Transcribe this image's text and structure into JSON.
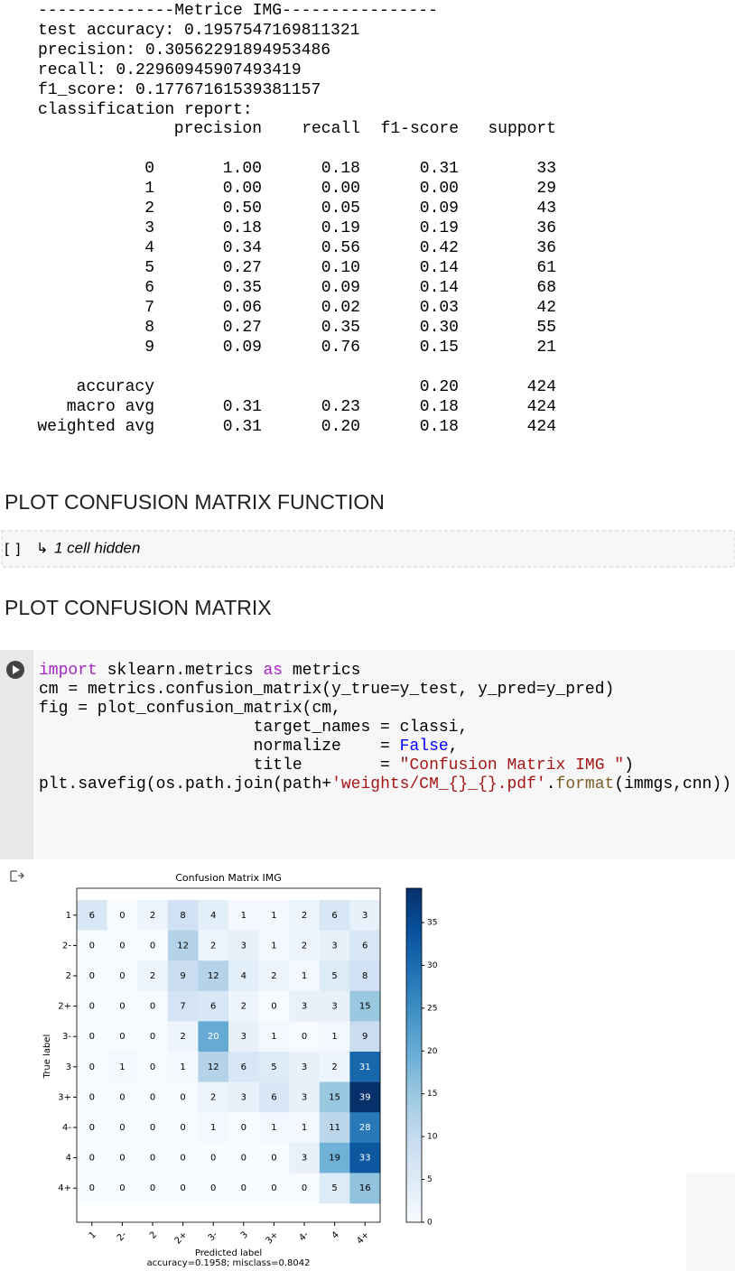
{
  "output": {
    "lines": [
      "--------------Metrice IMG----------------",
      "test accuracy: 0.1957547169811321",
      "precision: 0.30562291894953486",
      "recall: 0.22960945907493419",
      "f1_score: 0.17767161539381157",
      "classification report:"
    ],
    "report": {
      "columns": [
        "precision",
        "recall",
        "f1-score",
        "support"
      ],
      "rows": [
        {
          "label": "0",
          "values": [
            "1.00",
            "0.18",
            "0.31",
            "33"
          ]
        },
        {
          "label": "1",
          "values": [
            "0.00",
            "0.00",
            "0.00",
            "29"
          ]
        },
        {
          "label": "2",
          "values": [
            "0.50",
            "0.05",
            "0.09",
            "43"
          ]
        },
        {
          "label": "3",
          "values": [
            "0.18",
            "0.19",
            "0.19",
            "36"
          ]
        },
        {
          "label": "4",
          "values": [
            "0.34",
            "0.56",
            "0.42",
            "36"
          ]
        },
        {
          "label": "5",
          "values": [
            "0.27",
            "0.10",
            "0.14",
            "61"
          ]
        },
        {
          "label": "6",
          "values": [
            "0.35",
            "0.09",
            "0.14",
            "68"
          ]
        },
        {
          "label": "7",
          "values": [
            "0.06",
            "0.02",
            "0.03",
            "42"
          ]
        },
        {
          "label": "8",
          "values": [
            "0.27",
            "0.35",
            "0.30",
            "55"
          ]
        },
        {
          "label": "9",
          "values": [
            "0.09",
            "0.76",
            "0.15",
            "21"
          ]
        }
      ],
      "summary": [
        {
          "label": "accuracy",
          "values": [
            null,
            null,
            "0.20",
            "424"
          ]
        },
        {
          "label": "macro avg",
          "values": [
            "0.31",
            "0.23",
            "0.18",
            "424"
          ]
        },
        {
          "label": "weighted avg",
          "values": [
            "0.31",
            "0.20",
            "0.18",
            "424"
          ]
        }
      ]
    }
  },
  "headings": [
    "PLOT CONFUSION MATRIX FUNCTION",
    "PLOT CONFUSION MATRIX"
  ],
  "hidden_cell": {
    "bracket": "[ ]",
    "text": "1 cell hidden"
  },
  "code": {
    "lines": [
      [
        {
          "text": "import",
          "color": "#a626c8"
        },
        {
          "text": " sklearn.metrics ",
          "color": "#000000"
        },
        {
          "text": "as",
          "color": "#a626c8"
        },
        {
          "text": " metrics",
          "color": "#000000"
        }
      ],
      [
        {
          "text": "cm = metrics.confusion_matrix(y_true=y_test, y_pred=y_pred)",
          "color": "#000000"
        }
      ],
      [
        {
          "text": "fig = plot_confusion_matrix(cm,",
          "color": "#000000"
        }
      ],
      [
        {
          "text": "                      target_names = classi,",
          "color": "#000000"
        }
      ],
      [
        {
          "text": "                      normalize    = ",
          "color": "#000000"
        },
        {
          "text": "False",
          "color": "#0000ff"
        },
        {
          "text": ",",
          "color": "#000000"
        }
      ],
      [
        {
          "text": "                      title        = ",
          "color": "#000000"
        },
        {
          "text": "\"Confusion Matrix IMG \"",
          "color": "#a31515"
        },
        {
          "text": ")",
          "color": "#000000"
        }
      ],
      [
        {
          "text": "plt.savefig(os.path.join(path+",
          "color": "#000000"
        },
        {
          "text": "'weights/CM_{}_{}.pdf'",
          "color": "#a31515"
        },
        {
          "text": ".",
          "color": "#000000"
        },
        {
          "text": "format",
          "color": "#795e26"
        },
        {
          "text": "(immgs,cnn))",
          "color": "#000000"
        }
      ]
    ]
  },
  "confusion_matrix": {
    "title": "Confusion Matrix IMG",
    "labels": [
      "1",
      "2-",
      "2",
      "2+",
      "3-",
      "3",
      "3+",
      "4-",
      "4",
      "4+"
    ],
    "ylabel": "True label",
    "xlabel": "Predicted label",
    "footer": "accuracy=0.1958; misclass=0.8042",
    "matrix": [
      [
        6,
        0,
        2,
        8,
        4,
        1,
        1,
        2,
        6,
        3
      ],
      [
        0,
        0,
        0,
        12,
        2,
        3,
        1,
        2,
        3,
        6
      ],
      [
        0,
        0,
        2,
        9,
        12,
        4,
        2,
        1,
        5,
        8
      ],
      [
        0,
        0,
        0,
        7,
        6,
        2,
        0,
        3,
        3,
        15
      ],
      [
        0,
        0,
        0,
        2,
        20,
        3,
        1,
        0,
        1,
        9
      ],
      [
        0,
        1,
        0,
        1,
        12,
        6,
        5,
        3,
        2,
        31
      ],
      [
        0,
        0,
        0,
        0,
        2,
        3,
        6,
        3,
        15,
        39
      ],
      [
        0,
        0,
        0,
        0,
        1,
        0,
        1,
        1,
        11,
        28
      ],
      [
        0,
        0,
        0,
        0,
        0,
        0,
        0,
        3,
        19,
        33
      ],
      [
        0,
        0,
        0,
        0,
        0,
        0,
        0,
        0,
        5,
        16
      ]
    ],
    "clim": [
      0,
      39
    ],
    "cticks": [
      0,
      5,
      10,
      15,
      20,
      25,
      30,
      35
    ]
  }
}
